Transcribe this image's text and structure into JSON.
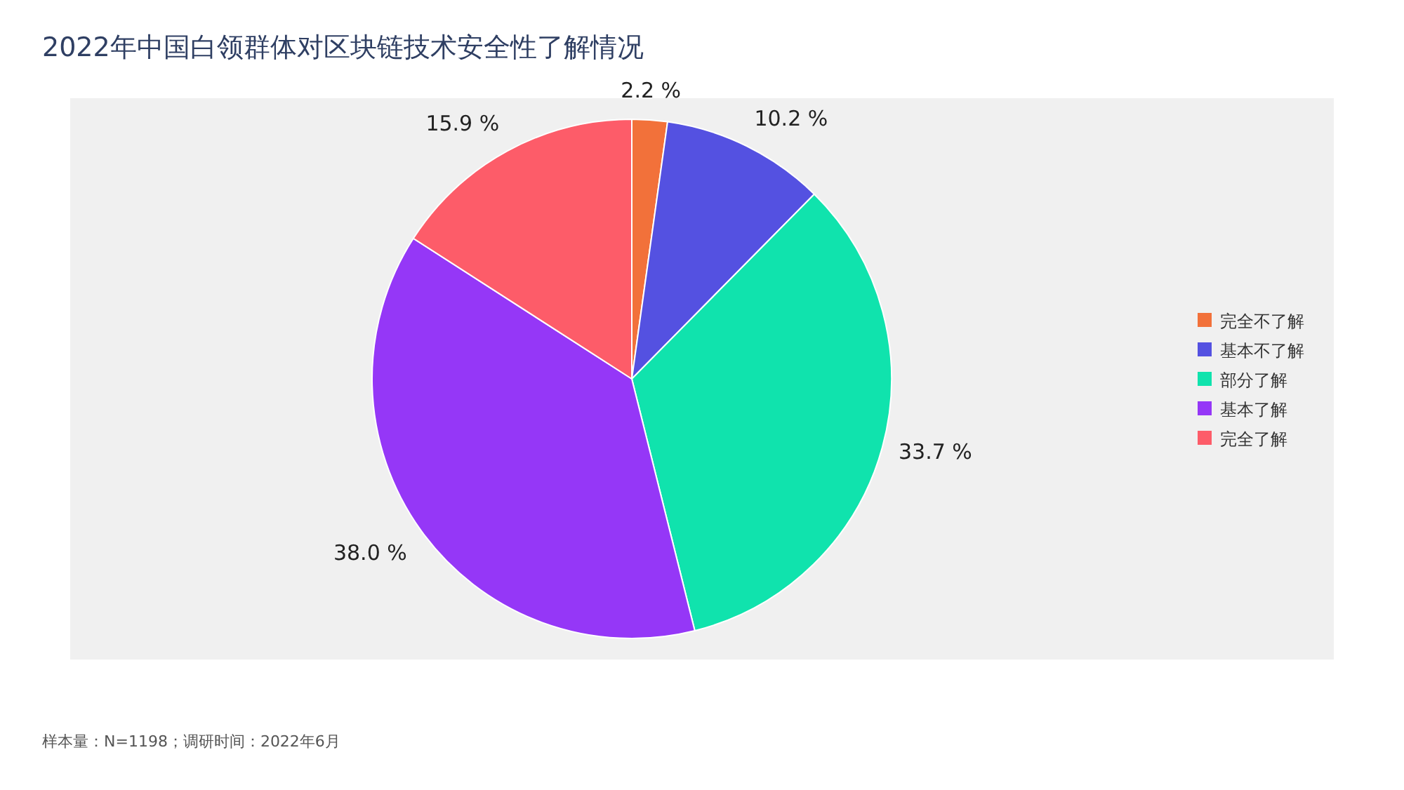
{
  "chart_data": {
    "type": "pie",
    "title": "2022年中国白领群体对区块链技术安全性了解情况",
    "categories": [
      "完全不了解",
      "基本不了解",
      "部分了解",
      "基本了解",
      "完全了解"
    ],
    "values": [
      2.2,
      10.2,
      33.7,
      38.0,
      15.9
    ],
    "value_labels": [
      "2.2 %",
      "10.2 %",
      "33.7 %",
      "38.0 %",
      "15.9 %"
    ],
    "colors": [
      "#f2713a",
      "#5451e1",
      "#10e3ad",
      "#9537f7",
      "#fd5c69"
    ],
    "legend": "right",
    "annotations": [
      "样本量：N=1198；调研时间：2022年6月"
    ]
  }
}
